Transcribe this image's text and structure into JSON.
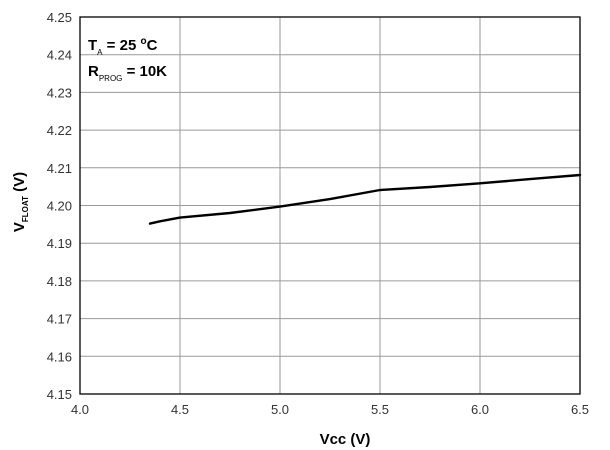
{
  "chart_data": {
    "type": "line",
    "title": "",
    "xlabel": "Vcc (V)",
    "ylabel": {
      "main": "V",
      "sub": "FLOAT",
      "unit": " (V)"
    },
    "xlim": [
      4.0,
      6.5
    ],
    "ylim": [
      4.15,
      4.25
    ],
    "xticks": [
      4.0,
      4.5,
      5.0,
      5.5,
      6.0,
      6.5
    ],
    "yticks": [
      4.15,
      4.16,
      4.17,
      4.18,
      4.19,
      4.2,
      4.21,
      4.22,
      4.23,
      4.24,
      4.25
    ],
    "xtick_labels": [
      "4.0",
      "4.5",
      "5.0",
      "5.5",
      "6.0",
      "6.5"
    ],
    "ytick_labels": [
      "4.15",
      "4.16",
      "4.17",
      "4.18",
      "4.19",
      "4.20",
      "4.21",
      "4.22",
      "4.23",
      "4.24",
      "4.25"
    ],
    "grid": true,
    "annotations": [
      {
        "main": "T",
        "sub": "A",
        "tail": " = 25 ",
        "sup": "o",
        "end": "C"
      },
      {
        "main": "R",
        "sub": "PROG",
        "tail": " = 10K",
        "sup": "",
        "end": ""
      }
    ],
    "series": [
      {
        "x": [
          4.35,
          4.4,
          4.5,
          4.75,
          5.0,
          5.25,
          5.5,
          5.75,
          6.0,
          6.25,
          6.5
        ],
        "y": [
          4.1952,
          4.1958,
          4.1968,
          4.198,
          4.1997,
          4.2017,
          4.2041,
          4.2049,
          4.2059,
          4.207,
          4.2081
        ],
        "color": "#000000"
      }
    ]
  }
}
